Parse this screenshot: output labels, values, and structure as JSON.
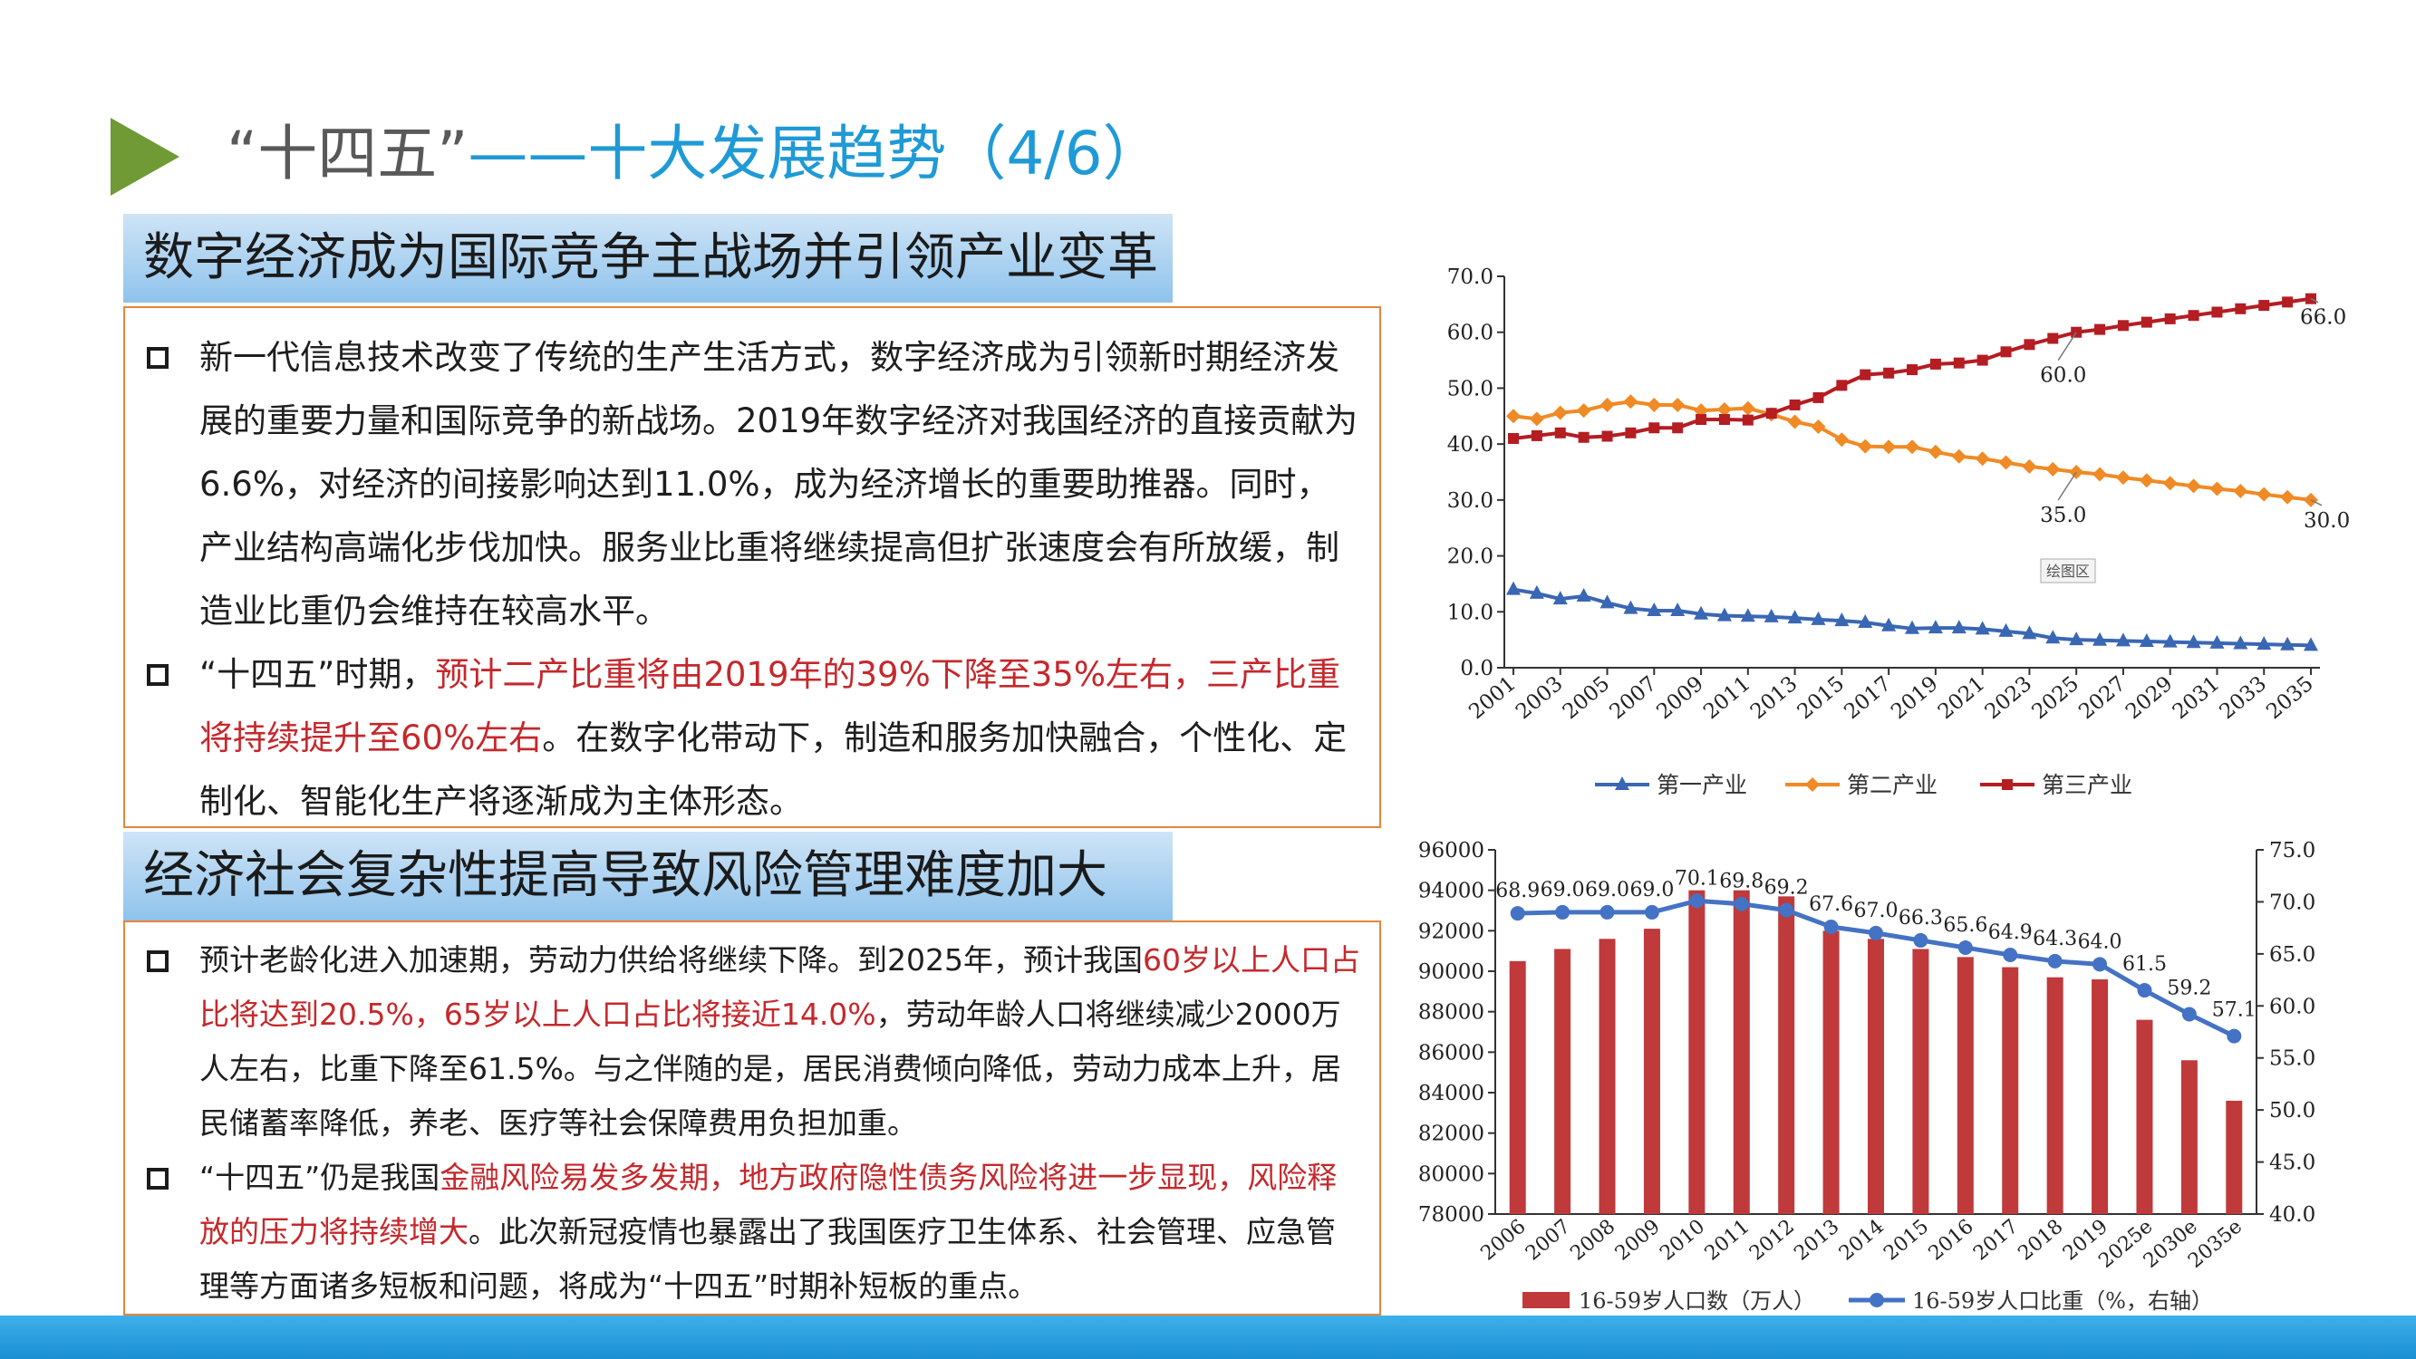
{
  "slide": {
    "title_part1": "“十四五”",
    "title_part2": "——十大发展趋势（4/6）",
    "accent_color": "#6f9a35"
  },
  "section1": {
    "heading": "数字经济成为国际竞争主战场并引领产业变革",
    "bullet1": "新一代信息技术改变了传统的生产生活方式，数字经济成为引领新时期经济发展的重要力量和国际竞争的新战场。2019年数字经济对我国经济的直接贡献为6.6%，对经济的间接影响达到11.0%，成为经济增长的重要助推器。同时，产业结构高端化步伐加快。服务业比重将继续提高但扩张速度会有所放缓，制造业比重仍会维持在较高水平。",
    "bullet2_pre": "“十四五”时期，",
    "bullet2_red": "预计二产比重将由2019年的39%下降至35%左右，三产比重将持续提升至60%左右",
    "bullet2_post": "。在数字化带动下，制造和服务加快融合，个性化、定制化、智能化生产将逐渐成为主体形态。"
  },
  "section2": {
    "heading": "经济社会复杂性提高导致风险管理难度加大",
    "bullet1_pre": "预计老龄化进入加速期，劳动力供给将继续下降。到2025年，预计我国",
    "bullet1_red": "60岁以上人口占比将达到20.5%，65岁以上人口占比将接近14.0%",
    "bullet1_post": "，劳动年龄人口将继续减少2000万人左右，比重下降至61.5%。与之伴随的是，居民消费倾向降低，劳动力成本上升，居民储蓄率降低，养老、医疗等社会保障费用负担加重。",
    "bullet2_pre": "“十四五”仍是我国",
    "bullet2_red": "金融风险易发多发期，地方政府隐性债务风险将进一步显现，风险释放的压力将持续增大",
    "bullet2_post": "。此次新冠疫情也暴露出了我国医疗卫生体系、社会管理、应急管理等方面诸多短板和问题，将成为“十四五”时期补短板的重点。"
  },
  "chart_data": [
    {
      "type": "line",
      "ylim": [
        0,
        70
      ],
      "y_ticks": [
        "0.0",
        "10.0",
        "20.0",
        "30.0",
        "40.0",
        "50.0",
        "60.0",
        "70.0"
      ],
      "x_tick_labels": [
        "2001",
        "2003",
        "2005",
        "2007",
        "2009",
        "2011",
        "2013",
        "2015",
        "2017",
        "2019",
        "2021",
        "2023",
        "2025",
        "2027",
        "2029",
        "2031",
        "2033",
        "2035"
      ],
      "x": [
        2001,
        2002,
        2003,
        2004,
        2005,
        2006,
        2007,
        2008,
        2009,
        2010,
        2011,
        2012,
        2013,
        2014,
        2015,
        2016,
        2017,
        2018,
        2019,
        2020,
        2021,
        2022,
        2023,
        2024,
        2025,
        2026,
        2027,
        2028,
        2029,
        2030,
        2031,
        2032,
        2033,
        2034,
        2035
      ],
      "series": [
        {
          "name": "第一产业",
          "color": "#3a67b4",
          "marker": "triangle",
          "values": [
            14.0,
            13.3,
            12.3,
            12.8,
            11.6,
            10.6,
            10.2,
            10.2,
            9.6,
            9.3,
            9.2,
            9.1,
            8.9,
            8.6,
            8.4,
            8.1,
            7.5,
            7.0,
            7.1,
            7.1,
            6.9,
            6.5,
            6.1,
            5.3,
            5.0,
            4.9,
            4.8,
            4.7,
            4.6,
            4.5,
            4.4,
            4.3,
            4.2,
            4.1,
            4.0
          ]
        },
        {
          "name": "第二产业",
          "color": "#f08a24",
          "marker": "diamond",
          "values": [
            45.0,
            44.5,
            45.6,
            46.0,
            47.0,
            47.6,
            47.0,
            47.0,
            46.0,
            46.2,
            46.4,
            45.3,
            44.0,
            43.1,
            40.8,
            39.6,
            39.5,
            39.5,
            38.6,
            37.8,
            37.4,
            36.7,
            36.0,
            35.5,
            35.0,
            34.6,
            34.0,
            33.5,
            33.0,
            32.5,
            32.0,
            31.6,
            31.0,
            30.5,
            30.0
          ]
        },
        {
          "name": "第三产业",
          "color": "#b41d22",
          "marker": "square",
          "values": [
            41.0,
            41.5,
            42.0,
            41.2,
            41.4,
            42.0,
            42.9,
            42.9,
            44.4,
            44.4,
            44.3,
            45.5,
            47.0,
            48.3,
            50.5,
            52.4,
            52.7,
            53.3,
            54.3,
            54.5,
            55.0,
            56.5,
            57.8,
            58.9,
            60.0,
            60.5,
            61.2,
            61.8,
            62.4,
            63.0,
            63.6,
            64.2,
            64.8,
            65.4,
            66.0
          ]
        }
      ],
      "annotations": [
        "60.0",
        "66.0",
        "35.0",
        "30.0"
      ],
      "plot_area_label": "绘图区",
      "legend": "bottom"
    },
    {
      "type": "bar",
      "categories": [
        "2006",
        "2007",
        "2008",
        "2009",
        "2010",
        "2011",
        "2012",
        "2013",
        "2014",
        "2015",
        "2016",
        "2017",
        "2018",
        "2019",
        "2025e",
        "2030e",
        "2035e"
      ],
      "series": [
        {
          "name": "16-59岁人口数（万人）",
          "color": "#c0393b",
          "axis": "left",
          "values": [
            90500,
            91100,
            91600,
            92100,
            94000,
            94000,
            93700,
            92000,
            91600,
            91100,
            90700,
            90200,
            89700,
            89600,
            87600,
            85600,
            83600
          ]
        },
        {
          "name": "16-59岁人口比重（%，右轴）",
          "color": "#4472c4",
          "axis": "right",
          "type": "line",
          "values": [
            68.9,
            69.0,
            69.0,
            69.0,
            70.1,
            69.8,
            69.2,
            67.6,
            67.0,
            66.3,
            65.6,
            64.9,
            64.3,
            64.0,
            61.5,
            59.2,
            57.1
          ],
          "labels": [
            "68.9",
            "69.0",
            "69.0",
            "69.0",
            "70.1",
            "69.8",
            "69.2",
            "67.6",
            "67.0",
            "66.3",
            "65.6",
            "64.9",
            "64.3",
            "64.0",
            "61.5",
            "59.2",
            "57.1"
          ]
        }
      ],
      "ylim_left": [
        78000,
        96000
      ],
      "y_ticks_left": [
        "78000",
        "80000",
        "82000",
        "84000",
        "86000",
        "88000",
        "90000",
        "92000",
        "94000",
        "96000"
      ],
      "ylim_right": [
        40,
        75
      ],
      "y_ticks_right": [
        "40.0",
        "45.0",
        "50.0",
        "55.0",
        "60.0",
        "65.0",
        "70.0",
        "75.0"
      ],
      "legend": "bottom"
    }
  ]
}
